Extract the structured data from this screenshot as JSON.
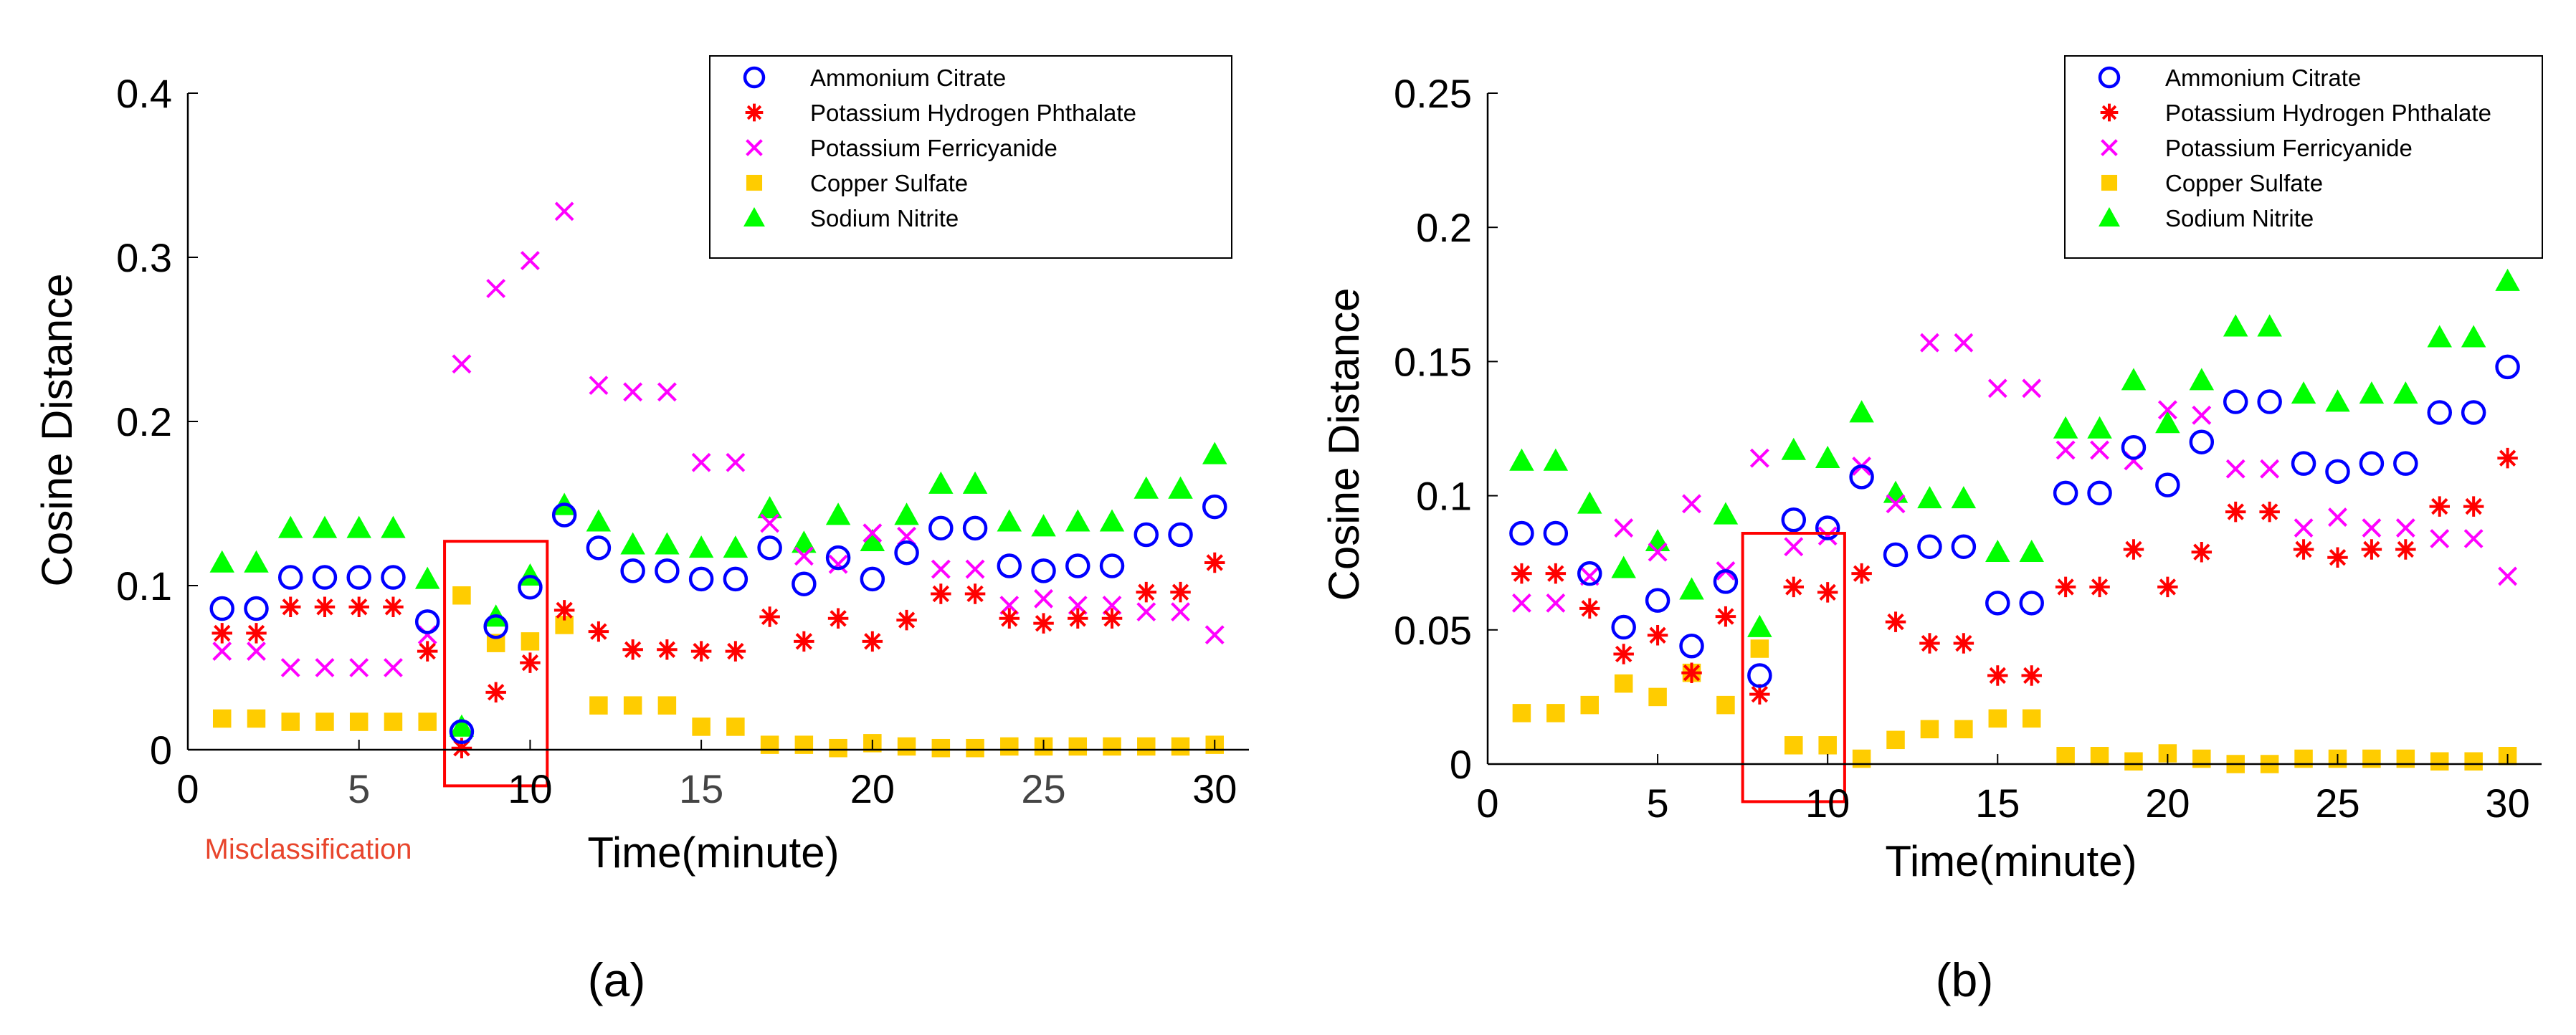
{
  "colors": {
    "ammonium": "#0000ff",
    "phthalate": "#ff0000",
    "ferricyanide": "#ff00ff",
    "copper": "#ffcc00",
    "nitrite": "#00ff00",
    "box": "#ff0000",
    "annotation": "#e8452c"
  },
  "chart_data": [
    {
      "type": "scatter",
      "panel_label": "a",
      "xlabel": "Time(minute)",
      "ylabel": "Cosine Distance",
      "xlim": [
        0,
        31
      ],
      "ylim": [
        0,
        0.4
      ],
      "xticks": [
        "0",
        "10",
        "20",
        "30"
      ],
      "xtick_values": [
        0,
        10,
        20,
        30
      ],
      "xticks_minor": [
        "5",
        "15",
        "25"
      ],
      "xtick_minor_values": [
        5,
        15,
        25
      ],
      "yticks": [
        "0",
        "0.1",
        "0.2",
        "0.3",
        "0.4"
      ],
      "ytick_values": [
        0,
        0.1,
        0.2,
        0.3,
        0.4
      ],
      "legend_position": "top-right",
      "highlight_box": {
        "x_range": [
          7.5,
          10.5
        ],
        "y_range": [
          -0.022,
          0.127
        ]
      },
      "annotation": "Misclassification",
      "x": [
        1,
        2,
        3,
        4,
        5,
        6,
        7,
        8,
        9,
        10,
        11,
        12,
        13,
        14,
        15,
        16,
        17,
        18,
        19,
        20,
        21,
        22,
        23,
        24,
        25,
        26,
        27,
        28,
        29,
        30
      ],
      "series": [
        {
          "name": "Ammonium Citrate",
          "marker": "circle",
          "color_key": "ammonium",
          "values": [
            0.086,
            0.086,
            0.105,
            0.105,
            0.105,
            0.105,
            0.078,
            0.011,
            0.075,
            0.099,
            0.143,
            0.123,
            0.109,
            0.109,
            0.104,
            0.104,
            0.123,
            0.101,
            0.117,
            0.104,
            0.12,
            0.135,
            0.135,
            0.112,
            0.109,
            0.112,
            0.112,
            0.131,
            0.131,
            0.148
          ]
        },
        {
          "name": "Potassium Hydrogen Phthalate",
          "marker": "asterisk",
          "color_key": "phthalate",
          "values": [
            0.071,
            0.071,
            0.087,
            0.087,
            0.087,
            0.087,
            0.06,
            0.001,
            0.035,
            0.053,
            0.085,
            0.072,
            0.061,
            0.061,
            0.06,
            0.06,
            0.081,
            0.066,
            0.08,
            0.066,
            0.079,
            0.095,
            0.095,
            0.08,
            0.077,
            0.08,
            0.08,
            0.096,
            0.096,
            0.114
          ]
        },
        {
          "name": "Potassium Ferricyanide",
          "marker": "x",
          "color_key": "ferricyanide",
          "values": [
            0.06,
            0.06,
            0.05,
            0.05,
            0.05,
            0.05,
            0.07,
            0.235,
            0.281,
            0.298,
            0.328,
            0.222,
            0.218,
            0.218,
            0.175,
            0.175,
            0.138,
            0.118,
            0.113,
            0.132,
            0.13,
            0.11,
            0.11,
            0.088,
            0.092,
            0.088,
            0.088,
            0.084,
            0.084,
            0.07
          ]
        },
        {
          "name": "Copper Sulfate",
          "marker": "square",
          "color_key": "copper",
          "values": [
            0.019,
            0.019,
            0.017,
            0.017,
            0.017,
            0.017,
            0.017,
            0.094,
            0.065,
            0.066,
            0.076,
            0.027,
            0.027,
            0.027,
            0.014,
            0.014,
            0.003,
            0.003,
            0.001,
            0.004,
            0.002,
            0.001,
            0.001,
            0.002,
            0.002,
            0.002,
            0.002,
            0.002,
            0.002,
            0.003
          ]
        },
        {
          "name": "Sodium Nitrite",
          "marker": "triangle",
          "color_key": "nitrite",
          "values": [
            0.114,
            0.114,
            0.135,
            0.135,
            0.135,
            0.135,
            0.104,
            0.014,
            0.081,
            0.106,
            0.149,
            0.139,
            0.125,
            0.125,
            0.123,
            0.123,
            0.147,
            0.126,
            0.143,
            0.127,
            0.143,
            0.162,
            0.162,
            0.139,
            0.136,
            0.139,
            0.139,
            0.159,
            0.159,
            0.18
          ]
        }
      ]
    },
    {
      "type": "scatter",
      "panel_label": "b",
      "xlabel": "Time(minute)",
      "ylabel": "Cosine Distance",
      "xlim": [
        0,
        31
      ],
      "ylim": [
        0,
        0.25
      ],
      "xticks": [
        "0",
        "5",
        "10",
        "15",
        "20",
        "25",
        "30"
      ],
      "xtick_values": [
        0,
        5,
        10,
        15,
        20,
        25,
        30
      ],
      "xticks_minor": [],
      "xtick_minor_values": [],
      "yticks": [
        "0",
        "0.05",
        "0.1",
        "0.15",
        "0.2",
        "0.25"
      ],
      "ytick_values": [
        0,
        0.05,
        0.1,
        0.15,
        0.2,
        0.25
      ],
      "legend_position": "top-right",
      "highlight_box": {
        "x_range": [
          7.5,
          10.5
        ],
        "y_range": [
          -0.014,
          0.086
        ]
      },
      "annotation": "",
      "x": [
        1,
        2,
        3,
        4,
        5,
        6,
        7,
        8,
        9,
        10,
        11,
        12,
        13,
        14,
        15,
        16,
        17,
        18,
        19,
        20,
        21,
        22,
        23,
        24,
        25,
        26,
        27,
        28,
        29,
        30
      ],
      "series": [
        {
          "name": "Ammonium Citrate",
          "marker": "circle",
          "color_key": "ammonium",
          "values": [
            0.086,
            0.086,
            0.071,
            0.051,
            0.061,
            0.044,
            0.068,
            0.033,
            0.091,
            0.088,
            0.107,
            0.078,
            0.081,
            0.081,
            0.06,
            0.06,
            0.101,
            0.101,
            0.118,
            0.104,
            0.12,
            0.135,
            0.135,
            0.112,
            0.109,
            0.112,
            0.112,
            0.131,
            0.131,
            0.148
          ]
        },
        {
          "name": "Potassium Hydrogen Phthalate",
          "marker": "asterisk",
          "color_key": "phthalate",
          "values": [
            0.071,
            0.071,
            0.058,
            0.041,
            0.048,
            0.034,
            0.055,
            0.026,
            0.066,
            0.064,
            0.071,
            0.053,
            0.045,
            0.045,
            0.033,
            0.033,
            0.066,
            0.066,
            0.08,
            0.066,
            0.079,
            0.094,
            0.094,
            0.08,
            0.077,
            0.08,
            0.08,
            0.096,
            0.096,
            0.114
          ]
        },
        {
          "name": "Potassium Ferricyanide",
          "marker": "x",
          "color_key": "ferricyanide",
          "values": [
            0.06,
            0.06,
            0.07,
            0.088,
            0.079,
            0.097,
            0.072,
            0.114,
            0.081,
            0.085,
            0.111,
            0.097,
            0.157,
            0.157,
            0.14,
            0.14,
            0.117,
            0.117,
            0.113,
            0.132,
            0.13,
            0.11,
            0.11,
            0.088,
            0.092,
            0.088,
            0.088,
            0.084,
            0.084,
            0.07
          ]
        },
        {
          "name": "Copper Sulfate",
          "marker": "square",
          "color_key": "copper",
          "values": [
            0.019,
            0.019,
            0.022,
            0.03,
            0.025,
            0.034,
            0.022,
            0.043,
            0.007,
            0.007,
            0.002,
            0.009,
            0.013,
            0.013,
            0.017,
            0.017,
            0.003,
            0.003,
            0.001,
            0.004,
            0.002,
            0.0,
            0.0,
            0.002,
            0.002,
            0.002,
            0.002,
            0.001,
            0.001,
            0.003
          ]
        },
        {
          "name": "Sodium Nitrite",
          "marker": "triangle",
          "color_key": "nitrite",
          "values": [
            0.113,
            0.113,
            0.097,
            0.073,
            0.083,
            0.065,
            0.093,
            0.051,
            0.117,
            0.114,
            0.131,
            0.101,
            0.099,
            0.099,
            0.079,
            0.079,
            0.125,
            0.125,
            0.143,
            0.127,
            0.143,
            0.163,
            0.163,
            0.138,
            0.135,
            0.138,
            0.138,
            0.159,
            0.159,
            0.18
          ]
        }
      ]
    }
  ],
  "panels": [
    {
      "label_text": "(a)"
    },
    {
      "label_text": "(b)"
    }
  ]
}
